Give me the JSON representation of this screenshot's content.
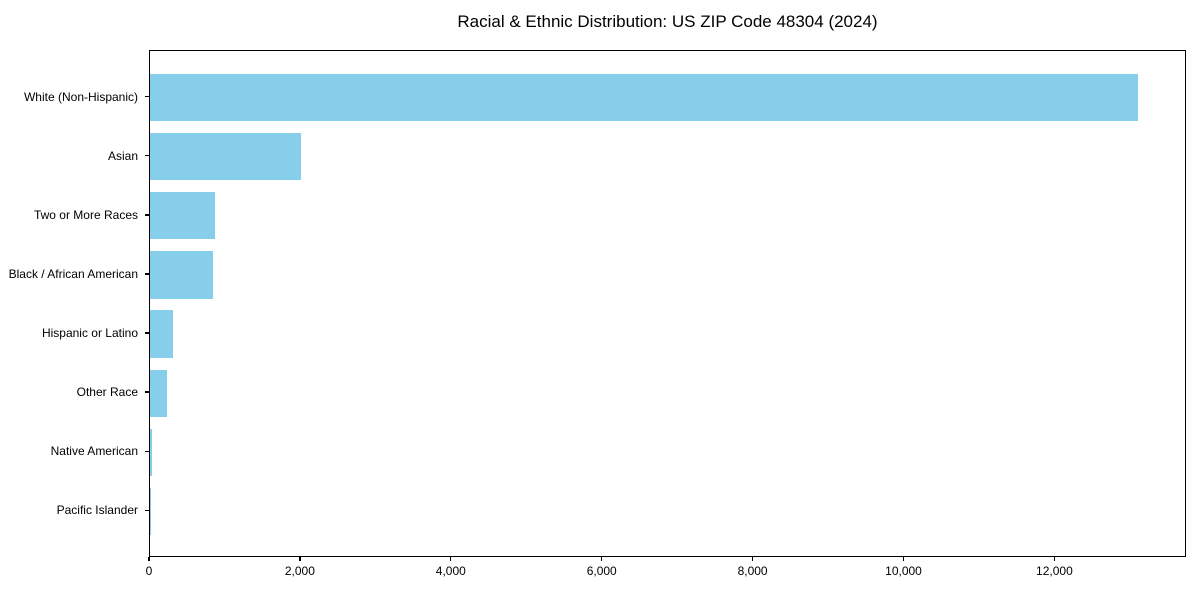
{
  "title": "Racial & Ethnic Distribution: US ZIP Code 48304 (2024)",
  "colors": {
    "bar": "#87CEEB",
    "axis": "#000000",
    "background": "#ffffff",
    "text": "#000000"
  },
  "chart_data": {
    "type": "bar",
    "orientation": "horizontal",
    "title": "Racial & Ethnic Distribution: US ZIP Code 48304 (2024)",
    "categories": [
      "White (Non-Hispanic)",
      "Asian",
      "Two or More Races",
      "Black / African American",
      "Hispanic or Latino",
      "Other Race",
      "Native American",
      "Pacific Islander"
    ],
    "values": [
      13090,
      2000,
      860,
      835,
      300,
      230,
      20,
      5
    ],
    "xlabel": "",
    "ylabel": "",
    "xlim": [
      0,
      13744
    ],
    "xticks": [
      0,
      2000,
      4000,
      6000,
      8000,
      10000,
      12000
    ],
    "xtick_labels": [
      "0",
      "2,000",
      "4,000",
      "6,000",
      "8,000",
      "10,000",
      "12,000"
    ],
    "grid": false,
    "legend": null,
    "bar_color": "#87CEEB"
  }
}
